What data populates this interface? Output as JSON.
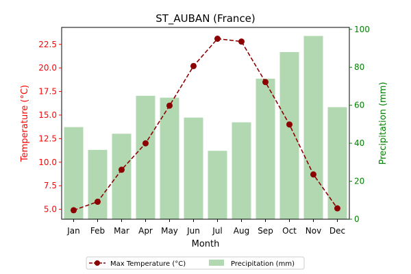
{
  "chart_data": {
    "type": "bar",
    "title": "ST_AUBAN (France)",
    "xlabel": "Month",
    "ylabel_left": "Temperature (°C)",
    "ylabel_right": "Precipitation (mm)",
    "categories": [
      "Jan",
      "Feb",
      "Mar",
      "Apr",
      "May",
      "Jun",
      "Jul",
      "Aug",
      "Sep",
      "Oct",
      "Nov",
      "Dec"
    ],
    "series": [
      {
        "name": "Max Temperature (°C)",
        "type": "line",
        "axis": "left",
        "color": "#8b0000",
        "linestyle": "dashed",
        "marker": "circle",
        "values": [
          4.9,
          5.8,
          9.2,
          12.0,
          16.0,
          20.2,
          23.1,
          22.8,
          18.5,
          14.0,
          8.7,
          5.1
        ]
      },
      {
        "name": "Precipitation (mm)",
        "type": "bar",
        "axis": "right",
        "color": "#b2d8b2",
        "values": [
          48.5,
          36.5,
          45.0,
          65.0,
          64.0,
          53.5,
          36.0,
          51.0,
          74.0,
          88.0,
          96.5,
          59.0
        ]
      }
    ],
    "ylim_left": [
      3.95,
      24.3
    ],
    "ylim_right": [
      0,
      101
    ],
    "yticks_left": [
      "5.0",
      "7.5",
      "10.0",
      "12.5",
      "15.0",
      "17.5",
      "20.0",
      "22.5"
    ],
    "yticks_right": [
      "0",
      "20",
      "40",
      "60",
      "80",
      "100"
    ],
    "left_axis_color": "#ff0000",
    "right_axis_color": "#008000",
    "grid": false,
    "legend_placement": "bottom-center"
  }
}
